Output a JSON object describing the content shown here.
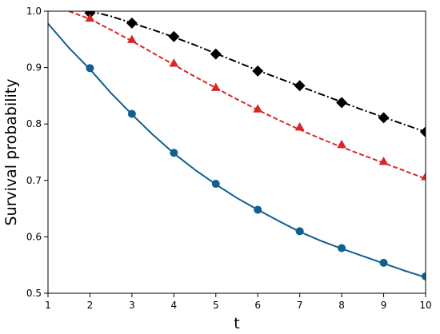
{
  "chart_data": {
    "type": "line",
    "title": "",
    "xlabel": "t",
    "ylabel": "Survival probability",
    "xlim": [
      1,
      10
    ],
    "ylim": [
      0.5,
      1.0
    ],
    "grid": false,
    "legend": "none",
    "xticks": [
      {
        "value": 1,
        "label": "1"
      },
      {
        "value": 2,
        "label": "2"
      },
      {
        "value": 3,
        "label": "3"
      },
      {
        "value": 4,
        "label": "4"
      },
      {
        "value": 5,
        "label": "5"
      },
      {
        "value": 6,
        "label": "6"
      },
      {
        "value": 7,
        "label": "7"
      },
      {
        "value": 8,
        "label": "8"
      },
      {
        "value": 9,
        "label": "9"
      },
      {
        "value": 10,
        "label": "10"
      }
    ],
    "yticks": [
      {
        "value": 0.5,
        "label": "0.5"
      },
      {
        "value": 0.6,
        "label": "0.6"
      },
      {
        "value": 0.7,
        "label": "0.7"
      },
      {
        "value": 0.8,
        "label": "0.8"
      },
      {
        "value": 0.9,
        "label": "0.9"
      },
      {
        "value": 1.0,
        "label": "1.0"
      }
    ],
    "series": [
      {
        "color": "#000000",
        "line_style": "dashdot",
        "marker": "diamond",
        "curve": {
          "x": [
            1,
            1.5,
            2,
            2.5,
            3,
            3.5,
            4,
            4.5,
            5,
            5.5,
            6,
            6.5,
            7,
            7.5,
            8,
            8.5,
            9,
            9.5,
            10
          ],
          "y": [
            1.016,
            1.01,
            1.0,
            0.991,
            0.979,
            0.967,
            0.954,
            0.94,
            0.925,
            0.91,
            0.895,
            0.881,
            0.867,
            0.853,
            0.839,
            0.825,
            0.812,
            0.799,
            0.786
          ]
        },
        "points": {
          "x": [
            2,
            3,
            4,
            5,
            6,
            7,
            8,
            9,
            10
          ],
          "y": [
            0.997,
            0.979,
            0.955,
            0.924,
            0.894,
            0.868,
            0.838,
            0.811,
            0.786
          ]
        }
      },
      {
        "color": "#d62728",
        "line_style": "dashed",
        "marker": "triangle",
        "curve": {
          "x": [
            1,
            1.5,
            2,
            2.5,
            3,
            3.5,
            4,
            4.5,
            5,
            5.5,
            6,
            6.5,
            7,
            7.5,
            8,
            8.5,
            9,
            9.5,
            10
          ],
          "y": [
            1.009,
            1.0,
            0.986,
            0.967,
            0.947,
            0.926,
            0.905,
            0.884,
            0.864,
            0.844,
            0.825,
            0.807,
            0.79,
            0.774,
            0.759,
            0.745,
            0.731,
            0.717,
            0.703
          ]
        },
        "points": {
          "x": [
            2,
            3,
            4,
            5,
            6,
            7,
            8,
            9,
            10
          ],
          "y": [
            0.987,
            0.949,
            0.907,
            0.864,
            0.826,
            0.794,
            0.763,
            0.733,
            0.706
          ]
        }
      },
      {
        "color": "#0f5f8f",
        "line_style": "solid",
        "marker": "circle",
        "curve": {
          "x": [
            1,
            1.5,
            2,
            2.5,
            3,
            3.5,
            4,
            4.5,
            5,
            5.5,
            6,
            6.5,
            7,
            7.5,
            8,
            8.5,
            9,
            9.5,
            10
          ],
          "y": [
            0.978,
            0.935,
            0.897,
            0.855,
            0.817,
            0.781,
            0.748,
            0.719,
            0.693,
            0.669,
            0.648,
            0.628,
            0.609,
            0.593,
            0.579,
            0.566,
            0.553,
            0.54,
            0.528
          ]
        },
        "points": {
          "x": [
            2,
            3,
            4,
            5,
            6,
            7,
            8,
            9,
            10
          ],
          "y": [
            0.899,
            0.818,
            0.749,
            0.694,
            0.648,
            0.61,
            0.58,
            0.554,
            0.53
          ]
        }
      }
    ]
  }
}
